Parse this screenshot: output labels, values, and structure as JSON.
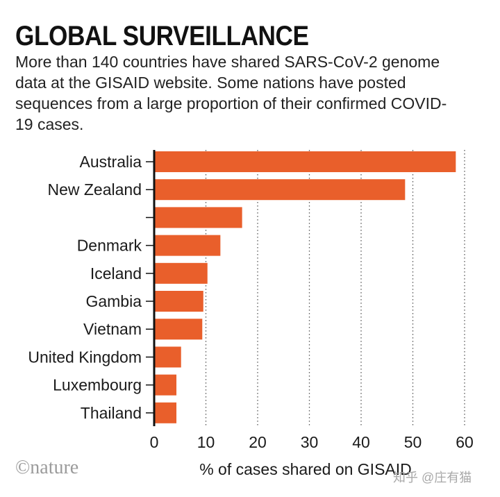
{
  "header": {
    "title": "GLOBAL SURVEILLANCE",
    "subtitle": "More than 140 countries have shared SARS-CoV-2 genome data at the GISAID website. Some nations have posted sequences from a large proportion of their confirmed COVID-19 cases."
  },
  "chart_data": {
    "type": "bar",
    "orientation": "horizontal",
    "categories": [
      "Australia",
      "New Zealand",
      "",
      "Denmark",
      "Iceland",
      "Gambia",
      "Vietnam",
      "United Kingdom",
      "Luxembourg",
      "Thailand"
    ],
    "values": [
      58.3,
      48.5,
      17.0,
      12.8,
      10.3,
      9.5,
      9.3,
      5.2,
      4.3,
      4.3
    ],
    "xlabel": "% of cases shared on GISAID",
    "xlim": [
      0,
      60
    ],
    "xticks": [
      "0",
      "10",
      "20",
      "30",
      "40",
      "50",
      "60"
    ],
    "grid": "vertical dotted",
    "bar_color": "#e95f2b"
  },
  "footer": {
    "logo": "©nature",
    "watermark": "知乎 @庄有猫"
  }
}
